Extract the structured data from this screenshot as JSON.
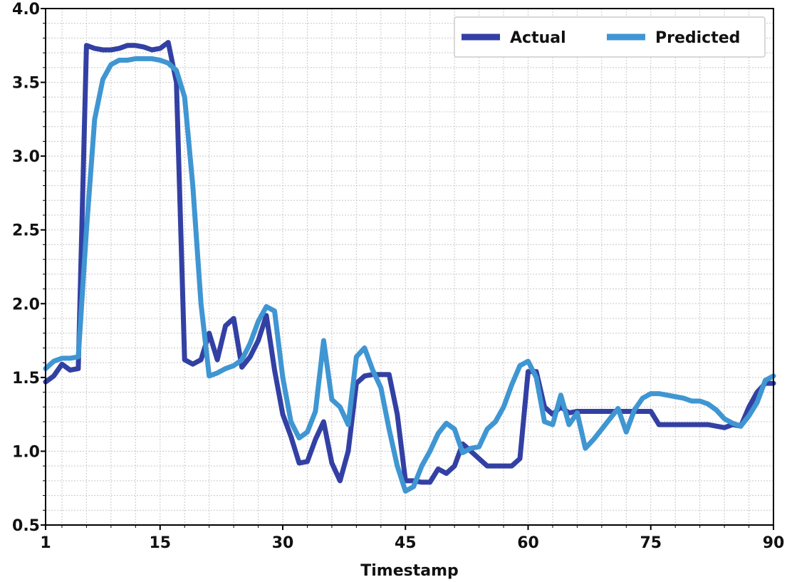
{
  "chart_data": {
    "type": "line",
    "title": "",
    "xlabel": "Timestamp",
    "ylabel": "",
    "xlim": [
      1,
      90
    ],
    "ylim": [
      0.5,
      4.0
    ],
    "x_ticks": [
      1,
      15,
      30,
      45,
      60,
      75,
      90
    ],
    "x_tick_labels": [
      "1",
      "15",
      "30",
      "45",
      "60",
      "75",
      "90"
    ],
    "y_ticks": [
      0.5,
      1.0,
      1.5,
      2.0,
      2.5,
      3.0,
      3.5,
      4.0
    ],
    "y_tick_labels": [
      "0.5",
      "1.0",
      "1.5",
      "2.0",
      "2.5",
      "3.0",
      "3.5",
      "4.0"
    ],
    "grid": true,
    "legend_position": "top-right",
    "x": [
      1,
      2,
      3,
      4,
      5,
      6,
      7,
      8,
      9,
      10,
      11,
      12,
      13,
      14,
      15,
      16,
      17,
      18,
      19,
      20,
      21,
      22,
      23,
      24,
      25,
      26,
      27,
      28,
      29,
      30,
      31,
      32,
      33,
      34,
      35,
      36,
      37,
      38,
      39,
      40,
      41,
      42,
      43,
      44,
      45,
      46,
      47,
      48,
      49,
      50,
      51,
      52,
      53,
      54,
      55,
      56,
      57,
      58,
      59,
      60,
      61,
      62,
      63,
      64,
      65,
      66,
      67,
      68,
      69,
      70,
      71,
      72,
      73,
      74,
      75,
      76,
      77,
      78,
      79,
      80,
      81,
      82,
      83,
      84,
      85,
      86,
      87,
      88,
      89,
      90
    ],
    "series": [
      {
        "name": "Actual",
        "color": "#3340a3",
        "values": [
          1.47,
          1.51,
          1.59,
          1.55,
          1.56,
          3.75,
          3.73,
          3.72,
          3.72,
          3.73,
          3.75,
          3.75,
          3.74,
          3.72,
          3.73,
          3.77,
          3.5,
          1.62,
          1.59,
          1.62,
          1.8,
          1.62,
          1.85,
          1.9,
          1.57,
          1.64,
          1.75,
          1.92,
          1.55,
          1.25,
          1.1,
          0.92,
          0.93,
          1.08,
          1.2,
          0.92,
          0.8,
          1.0,
          1.46,
          1.51,
          1.52,
          1.52,
          1.52,
          1.25,
          0.8,
          0.8,
          0.79,
          0.79,
          0.88,
          0.85,
          0.9,
          1.05,
          1.0,
          0.95,
          0.9,
          0.9,
          0.9,
          0.9,
          0.95,
          1.54,
          1.54,
          1.3,
          1.25,
          1.3,
          1.26,
          1.27,
          1.27,
          1.27,
          1.27,
          1.27,
          1.27,
          1.27,
          1.27,
          1.27,
          1.27,
          1.18,
          1.18,
          1.18,
          1.18,
          1.18,
          1.18,
          1.18,
          1.17,
          1.16,
          1.18,
          1.17,
          1.3,
          1.4,
          1.46,
          1.46
        ]
      },
      {
        "name": "Predicted",
        "color": "#3f96d2",
        "values": [
          1.56,
          1.61,
          1.63,
          1.63,
          1.64,
          2.5,
          3.25,
          3.52,
          3.62,
          3.65,
          3.65,
          3.66,
          3.66,
          3.66,
          3.65,
          3.63,
          3.58,
          3.4,
          2.8,
          2.0,
          1.51,
          1.53,
          1.56,
          1.58,
          1.62,
          1.73,
          1.88,
          1.98,
          1.95,
          1.5,
          1.2,
          1.09,
          1.13,
          1.27,
          1.75,
          1.35,
          1.3,
          1.18,
          1.64,
          1.7,
          1.55,
          1.43,
          1.15,
          0.9,
          0.73,
          0.76,
          0.9,
          1.0,
          1.12,
          1.19,
          1.15,
          0.99,
          1.02,
          1.03,
          1.15,
          1.2,
          1.3,
          1.45,
          1.58,
          1.61,
          1.5,
          1.2,
          1.18,
          1.38,
          1.18,
          1.26,
          1.02,
          1.08,
          1.15,
          1.22,
          1.29,
          1.13,
          1.28,
          1.36,
          1.39,
          1.39,
          1.38,
          1.37,
          1.36,
          1.34,
          1.34,
          1.32,
          1.28,
          1.22,
          1.19,
          1.17,
          1.24,
          1.33,
          1.48,
          1.51
        ]
      }
    ]
  }
}
